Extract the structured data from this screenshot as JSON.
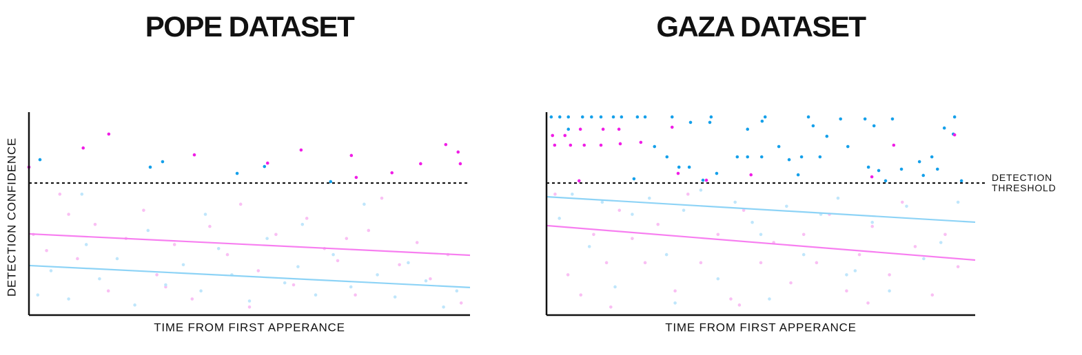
{
  "chart_data": [
    {
      "type": "scatter",
      "title": "POPE DATASET",
      "x_label": "TIME FROM FIRST APPERANCE",
      "y_label": "DETECTION CONFIDENCE",
      "xlim": [
        0,
        100
      ],
      "ylim": [
        0,
        100
      ],
      "threshold": 65.5,
      "series": [
        {
          "type": "scatter",
          "color": "#f9bff3",
          "x": [
            1,
            4,
            7,
            11,
            15,
            18,
            22,
            26,
            29,
            33,
            37,
            41,
            45,
            48,
            52,
            56,
            60,
            63,
            67,
            70,
            74,
            77,
            80,
            84,
            88,
            91,
            95,
            98,
            9,
            31,
            50,
            72
          ],
          "values": [
            40,
            32,
            60,
            28,
            45,
            12,
            38,
            52,
            20,
            35,
            8,
            44,
            30,
            55,
            22,
            40,
            15,
            48,
            33,
            27,
            10,
            42,
            58,
            25,
            36,
            18,
            30,
            6,
            50,
            14,
            4,
            38
          ]
        },
        {
          "type": "scatter",
          "color": "#bfe6fb",
          "x": [
            2,
            5,
            9,
            13,
            16,
            20,
            24,
            27,
            31,
            35,
            39,
            43,
            46,
            50,
            54,
            58,
            61,
            65,
            69,
            73,
            76,
            79,
            83,
            86,
            90,
            94,
            97,
            12,
            40,
            62
          ],
          "values": [
            10,
            22,
            8,
            35,
            18,
            28,
            5,
            42,
            15,
            25,
            12,
            33,
            20,
            7,
            38,
            16,
            24,
            10,
            30,
            14,
            55,
            20,
            9,
            26,
            17,
            4,
            12,
            60,
            50,
            45
          ]
        },
        {
          "type": "scatter",
          "color": "#f01ee6",
          "x": [
            0,
            12.3,
            18.1,
            37.5,
            54.1,
            61.7,
            73.1,
            74.2,
            82.3,
            88.8,
            94.5,
            97.3,
            97.8
          ],
          "values": [
            73.4,
            82.9,
            89.8,
            79.5,
            75.4,
            81.9,
            79.2,
            68.3,
            70.6,
            75.1,
            84.6,
            80.9,
            75.1
          ]
        },
        {
          "type": "scatter",
          "color": "#15a0ea",
          "x": [
            2.5,
            27.5,
            30.3,
            47.2,
            53.4,
            68.4
          ],
          "values": [
            77.1,
            73.4,
            76.1,
            70.3,
            73.7,
            66.2
          ]
        },
        {
          "type": "line",
          "color": "#f77ef0",
          "x": [
            0,
            100
          ],
          "values": [
            40.3,
            29.7
          ]
        },
        {
          "type": "line",
          "color": "#8dd3f6",
          "x": [
            0,
            100
          ],
          "values": [
            24.6,
            13.7
          ]
        }
      ]
    },
    {
      "type": "scatter",
      "title": "GAZA DATASET",
      "x_label": "TIME FROM FIRST APPERANCE",
      "xlim": [
        0,
        100
      ],
      "ylim": [
        0,
        100
      ],
      "threshold": 65.5,
      "threshold_label": "DETECTION THRESHOLD",
      "series": [
        {
          "type": "scatter",
          "color": "#f9bff3",
          "x": [
            2,
            5,
            8,
            11,
            14,
            17,
            20,
            23,
            26,
            30,
            33,
            36,
            40,
            43,
            46,
            50,
            53,
            57,
            60,
            63,
            66,
            70,
            73,
            76,
            80,
            83,
            86,
            90,
            93,
            96,
            15,
            45,
            75
          ],
          "values": [
            60,
            20,
            10,
            40,
            26,
            52,
            38,
            26,
            45,
            12,
            60,
            26,
            40,
            8,
            52,
            26,
            36,
            16,
            40,
            26,
            50,
            12,
            30,
            44,
            20,
            56,
            34,
            10,
            40,
            24,
            4,
            5,
            6
          ]
        },
        {
          "type": "scatter",
          "color": "#bfe6fb",
          "x": [
            3,
            6,
            10,
            13,
            16,
            20,
            24,
            28,
            32,
            36,
            40,
            44,
            48,
            52,
            56,
            60,
            64,
            68,
            72,
            76,
            80,
            84,
            88,
            92,
            96,
            30,
            50,
            70
          ],
          "values": [
            48,
            60,
            34,
            56,
            14,
            50,
            58,
            30,
            52,
            62,
            18,
            56,
            46,
            8,
            54,
            30,
            50,
            58,
            22,
            46,
            12,
            54,
            28,
            36,
            56,
            6,
            40,
            20
          ]
        },
        {
          "type": "scatter",
          "color": "#15a0ea",
          "x": [
            1.1,
            3.1,
            5.1,
            8.4,
            10.5,
            12.7,
            15.6,
            17.5,
            21.2,
            23.0,
            29.3,
            38.1,
            38.4,
            51.0,
            61.1,
            68.6,
            74.3,
            80.7,
            95.2,
            5.1,
            33.6,
            46.9,
            50.3,
            62.2,
            65.4,
            76.4,
            92.8,
            94.9,
            25.2,
            28.1,
            30.9,
            33.3,
            44.5,
            46.9,
            50.2,
            54.2,
            56.6,
            59.5,
            63.8,
            70.3,
            75.1,
            77.5,
            82.8,
            87.0,
            89.9,
            91.2,
            96.8,
            58.7,
            39.7,
            36.5,
            20.4,
            79.1,
            87.9
          ],
          "values": [
            98.3,
            98.3,
            98.3,
            98.3,
            98.3,
            98.3,
            98.3,
            98.3,
            98.3,
            98.3,
            98.3,
            95.6,
            98.3,
            98.3,
            98.3,
            97.3,
            97.3,
            97.3,
            98.3,
            92.2,
            95.6,
            92.2,
            96.2,
            93.9,
            88.7,
            93.9,
            92.8,
            89.8,
            83.6,
            78.5,
            73.4,
            73.4,
            78.5,
            78.5,
            78.5,
            83.6,
            77.1,
            78.5,
            78.5,
            83.6,
            73.4,
            71.7,
            72.4,
            76.1,
            78.5,
            72.4,
            66.6,
            69.6,
            70.3,
            66.9,
            67.6,
            66.6,
            69.3
          ]
        },
        {
          "type": "scatter",
          "color": "#f01ee6",
          "x": [
            1.4,
            4.3,
            1.9,
            5.6,
            8.8,
            12.7,
            7.9,
            13.2,
            16.9,
            17.2,
            22.0,
            29.3,
            30.7,
            37.3,
            47.7,
            75.9,
            81.0,
            95.2,
            7.6
          ],
          "values": [
            89.1,
            89.1,
            84.3,
            84.3,
            84.3,
            84.3,
            92.2,
            92.2,
            92.2,
            85.0,
            85.7,
            93.2,
            70.3,
            66.9,
            69.6,
            68.6,
            84.3,
            89.4,
            66.6
          ]
        },
        {
          "type": "line",
          "color": "#8dd3f6",
          "x": [
            0,
            100
          ],
          "values": [
            58.7,
            46.1
          ]
        },
        {
          "type": "line",
          "color": "#f77ef0",
          "x": [
            0,
            100
          ],
          "values": [
            44.4,
            27.3
          ]
        }
      ]
    }
  ]
}
